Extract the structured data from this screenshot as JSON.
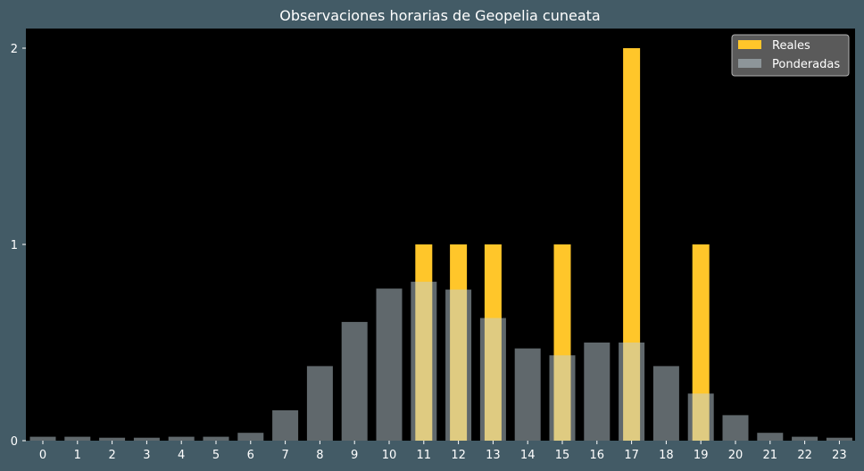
{
  "chart_data": {
    "type": "bar",
    "title": "Observaciones horarias de Geopelia cuneata",
    "xlabel": "",
    "ylabel": "",
    "categories": [
      "0",
      "1",
      "2",
      "3",
      "4",
      "5",
      "6",
      "7",
      "8",
      "9",
      "10",
      "11",
      "12",
      "13",
      "14",
      "15",
      "16",
      "17",
      "18",
      "19",
      "20",
      "21",
      "22",
      "23"
    ],
    "yticks": [
      "0",
      "1",
      "2"
    ],
    "ylim": [
      0,
      2.1
    ],
    "grid": false,
    "legend_position": "top-right",
    "series": [
      {
        "name": "Reales",
        "color": "#ffc62a",
        "values": [
          0,
          0,
          0,
          0,
          0,
          0,
          0,
          0,
          0,
          0,
          0,
          1,
          1,
          1,
          0,
          1,
          0,
          2,
          0,
          1,
          0,
          0,
          0,
          0
        ]
      },
      {
        "name": "Ponderadas",
        "color": "#c0d0d8",
        "opacity": 0.5,
        "values": [
          0.02,
          0.02,
          0.015,
          0.015,
          0.02,
          0.02,
          0.04,
          0.155,
          0.38,
          0.605,
          0.775,
          0.81,
          0.77,
          0.625,
          0.47,
          0.435,
          0.5,
          0.5,
          0.38,
          0.24,
          0.13,
          0.04,
          0.02,
          0.015
        ]
      }
    ],
    "colors": {
      "background": "#435b66",
      "plot_area": "#000000",
      "text": "#ffffff",
      "legend_bg": "#5a5a5a",
      "legend_border": "#b0b0b0"
    }
  }
}
